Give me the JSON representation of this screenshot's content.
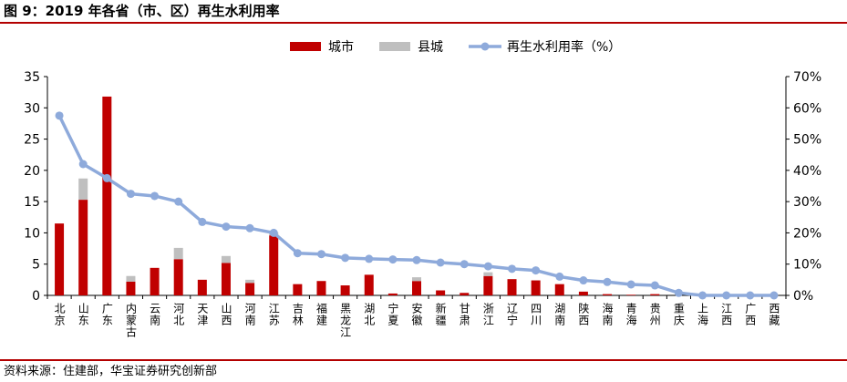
{
  "header": {
    "title": "图 9：2019 年各省（市、区）再生水利用率"
  },
  "footer": {
    "source": "资料来源：住建部，华宝证券研究创新部"
  },
  "chart_data": {
    "type": "bar",
    "categories": [
      "北京",
      "山东",
      "广东",
      "内蒙古",
      "云南",
      "河北",
      "天津",
      "山西",
      "河南",
      "江苏",
      "吉林",
      "福建",
      "黑龙江",
      "湖北",
      "宁夏",
      "安徽",
      "新疆",
      "甘肃",
      "浙江",
      "辽宁",
      "四川",
      "湖南",
      "陕西",
      "海南",
      "青海",
      "贵州",
      "重庆",
      "上海",
      "江西",
      "广西",
      "西藏"
    ],
    "series": [
      {
        "name": "城市",
        "type": "bar",
        "stack": "total",
        "axis": "left",
        "color": "#c00000",
        "values": [
          11.5,
          15.3,
          31.8,
          2.2,
          4.4,
          5.8,
          2.5,
          5.2,
          2.0,
          9.6,
          1.8,
          2.3,
          1.6,
          3.3,
          0.3,
          2.3,
          0.8,
          0.4,
          3.1,
          2.6,
          2.4,
          1.8,
          0.6,
          0.2,
          0.1,
          0.2,
          0,
          0,
          0,
          0,
          0
        ]
      },
      {
        "name": "县城",
        "type": "bar",
        "stack": "total",
        "axis": "left",
        "color": "#bfbfbf",
        "values": [
          0,
          3.4,
          0,
          0.9,
          0,
          1.8,
          0,
          1.1,
          0.5,
          0.5,
          0,
          0,
          0,
          0,
          0,
          0.6,
          0,
          0,
          0.6,
          0,
          0,
          0,
          0,
          0,
          0,
          0,
          0,
          0,
          0,
          0,
          0
        ]
      },
      {
        "name": "再生水利用率（%）",
        "type": "line",
        "axis": "right",
        "color": "#8eaadb",
        "values": [
          57.5,
          42,
          37.5,
          32.5,
          31.8,
          30,
          23.5,
          22,
          21.5,
          20,
          13.5,
          13.2,
          12,
          11.7,
          11.5,
          11.3,
          10.5,
          10,
          9.3,
          8.5,
          8,
          6,
          4.8,
          4.3,
          3.5,
          3.2,
          0.8,
          0,
          0,
          0,
          0
        ]
      }
    ],
    "y_left": {
      "min": 0,
      "max": 35,
      "ticks": [
        "0",
        "5",
        "10",
        "15",
        "20",
        "25",
        "30",
        "35"
      ]
    },
    "y_right": {
      "min": 0,
      "max": 70,
      "ticks": [
        "0%",
        "10%",
        "20%",
        "30%",
        "40%",
        "50%",
        "60%",
        "70%"
      ]
    },
    "legend_position": "top-center",
    "grid": false
  }
}
